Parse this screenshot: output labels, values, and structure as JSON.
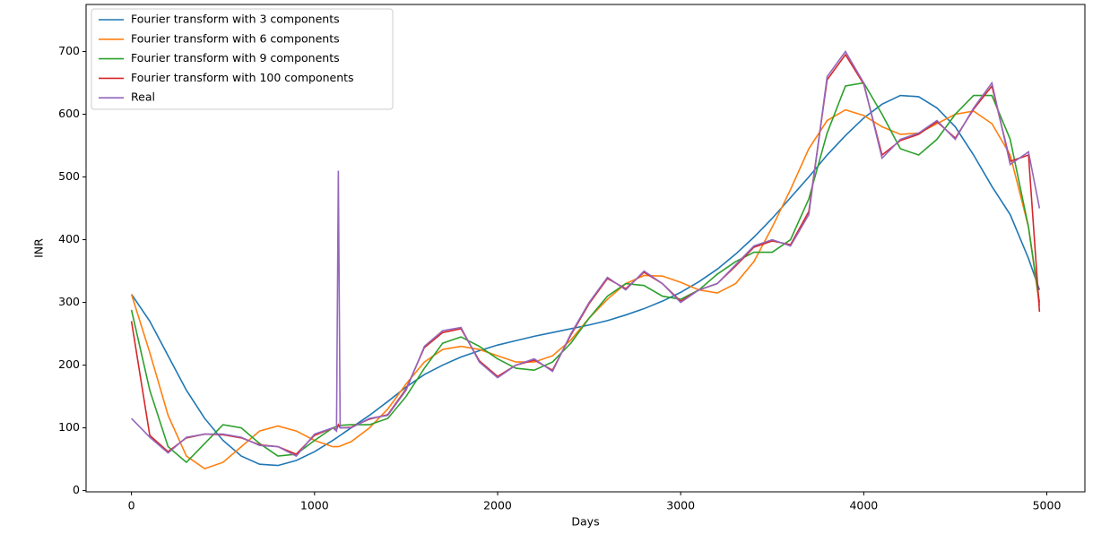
{
  "chart_data": {
    "type": "line",
    "x": [
      0,
      100,
      200,
      300,
      400,
      500,
      600,
      700,
      800,
      900,
      1000,
      1100,
      1120,
      1130,
      1140,
      1200,
      1300,
      1400,
      1500,
      1600,
      1700,
      1800,
      1900,
      2000,
      2100,
      2200,
      2300,
      2400,
      2500,
      2600,
      2700,
      2800,
      2900,
      3000,
      3100,
      3200,
      3300,
      3400,
      3500,
      3600,
      3700,
      3800,
      3900,
      4000,
      4100,
      4200,
      4300,
      4400,
      4500,
      4600,
      4700,
      4800,
      4900,
      4960
    ],
    "series": [
      {
        "name": "Fourier transform with 3 components",
        "color": "#1f77b4",
        "values": [
          313,
          270,
          215,
          160,
          115,
          80,
          55,
          42,
          40,
          48,
          62,
          80,
          84,
          86,
          88,
          100,
          120,
          142,
          165,
          185,
          200,
          213,
          223,
          232,
          239,
          246,
          252,
          258,
          264,
          271,
          280,
          290,
          302,
          316,
          333,
          353,
          377,
          404,
          434,
          467,
          500,
          535,
          566,
          594,
          616,
          630,
          628,
          610,
          580,
          535,
          485,
          440,
          370,
          320
        ]
      },
      {
        "name": "Fourier transform with 6 components",
        "color": "#ff7f0e",
        "values": [
          313,
          220,
          120,
          55,
          35,
          45,
          70,
          95,
          103,
          95,
          80,
          70,
          70,
          70,
          71,
          78,
          100,
          130,
          170,
          205,
          225,
          230,
          225,
          215,
          205,
          205,
          215,
          240,
          275,
          305,
          330,
          343,
          342,
          332,
          320,
          315,
          330,
          365,
          420,
          480,
          545,
          590,
          607,
          598,
          580,
          568,
          570,
          585,
          600,
          605,
          585,
          535,
          420,
          295
        ]
      },
      {
        "name": "Fourier transform with 9 components",
        "color": "#2ca02c",
        "values": [
          288,
          160,
          70,
          45,
          75,
          105,
          100,
          75,
          55,
          58,
          80,
          100,
          102,
          103,
          104,
          105,
          105,
          115,
          150,
          195,
          235,
          245,
          230,
          210,
          195,
          192,
          205,
          235,
          275,
          310,
          330,
          327,
          310,
          305,
          320,
          345,
          365,
          380,
          380,
          400,
          465,
          570,
          645,
          650,
          600,
          545,
          535,
          560,
          600,
          630,
          630,
          560,
          420,
          300
        ]
      },
      {
        "name": "Fourier transform with 100 components",
        "color": "#d62728",
        "values": [
          270,
          88,
          62,
          84,
          90,
          89,
          84,
          73,
          70,
          58,
          88,
          100,
          97,
          105,
          100,
          101,
          114,
          121,
          162,
          228,
          252,
          258,
          207,
          182,
          200,
          208,
          192,
          248,
          298,
          338,
          322,
          348,
          330,
          302,
          320,
          330,
          358,
          388,
          398,
          392,
          445,
          655,
          695,
          648,
          535,
          558,
          568,
          588,
          562,
          608,
          645,
          525,
          535,
          285
        ]
      },
      {
        "name": "Real",
        "color": "#9467bd",
        "values": [
          115,
          85,
          60,
          85,
          90,
          90,
          85,
          72,
          70,
          55,
          90,
          100,
          95,
          510,
          100,
          100,
          115,
          120,
          160,
          230,
          255,
          260,
          205,
          180,
          200,
          210,
          190,
          250,
          300,
          340,
          320,
          350,
          330,
          300,
          320,
          330,
          360,
          390,
          400,
          390,
          440,
          660,
          700,
          650,
          530,
          560,
          570,
          590,
          560,
          610,
          650,
          520,
          540,
          450
        ]
      }
    ],
    "xlabel": "Days",
    "ylabel": "INR",
    "xlim": [
      -248,
      5208
    ],
    "ylim": [
      -2,
      775
    ],
    "xticks": [
      0,
      1000,
      2000,
      3000,
      4000,
      5000
    ],
    "yticks": [
      0,
      100,
      200,
      300,
      400,
      500,
      600,
      700
    ],
    "legend": "upper left"
  }
}
